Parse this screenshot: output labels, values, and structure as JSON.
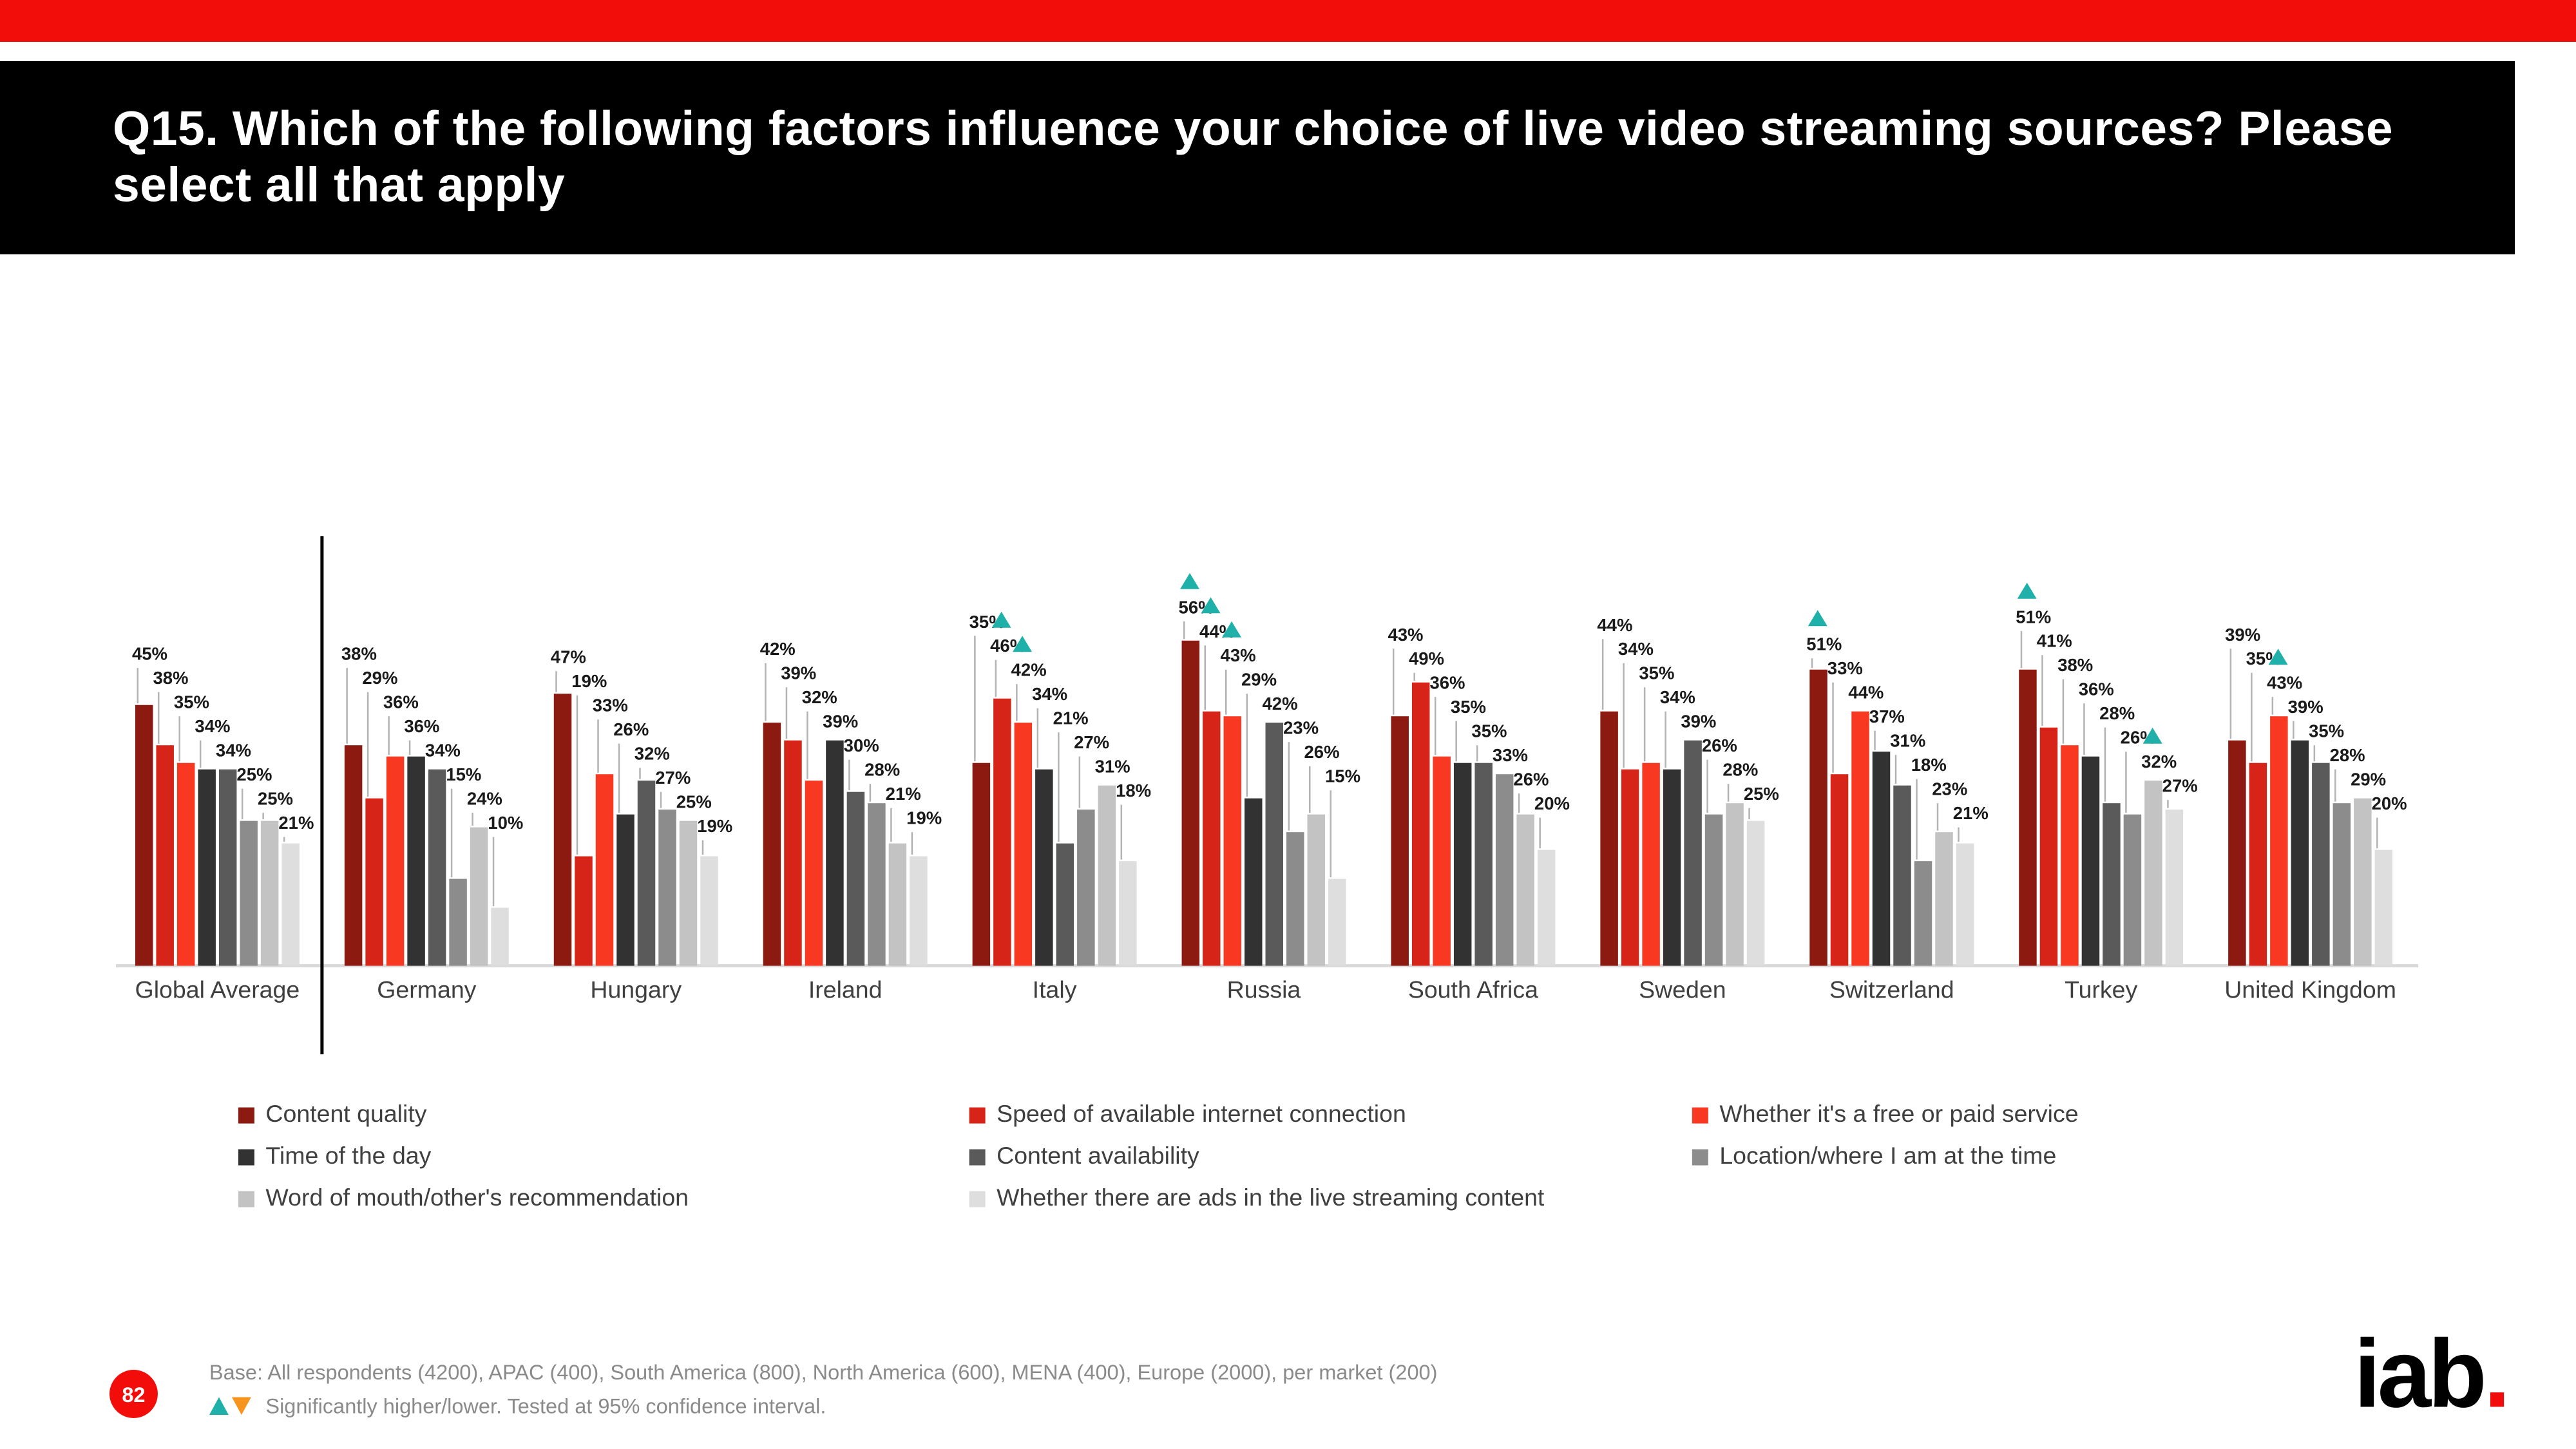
{
  "header": {
    "title": "Q15. Which of the following factors influence your choice of live video streaming sources? Please select all that apply"
  },
  "colors": {
    "accent_red": "#F20D0A",
    "header_bg": "#000000",
    "sig_higher": "#1FB1A9",
    "sig_lower": "#F7941D",
    "axis": "#D9D9D9",
    "leader": "#B3B3B3"
  },
  "chart_data": {
    "type": "bar",
    "title": "",
    "xlabel": "",
    "ylabel": "",
    "ylim": [
      0,
      60
    ],
    "grid": false,
    "legend_position": "bottom",
    "value_suffix": "%",
    "categories": [
      "Global Average",
      "Germany",
      "Hungary",
      "Ireland",
      "Italy",
      "Russia",
      "South Africa",
      "Sweden",
      "Switzerland",
      "Turkey",
      "United Kingdom"
    ],
    "series": [
      {
        "name": "Content quality",
        "color": "#8C1A10",
        "values": [
          45,
          38,
          47,
          42,
          35,
          56,
          43,
          44,
          51,
          51,
          39
        ]
      },
      {
        "name": "Speed of available internet connection",
        "color": "#D62518",
        "values": [
          38,
          29,
          19,
          39,
          46,
          44,
          49,
          34,
          33,
          41,
          35
        ]
      },
      {
        "name": "Whether it's a free or paid service",
        "color": "#F93822",
        "values": [
          35,
          36,
          33,
          32,
          42,
          43,
          36,
          35,
          44,
          38,
          43
        ]
      },
      {
        "name": "Time of the day",
        "color": "#323232",
        "values": [
          34,
          36,
          26,
          39,
          34,
          29,
          35,
          34,
          37,
          36,
          39
        ]
      },
      {
        "name": "Content availability",
        "color": "#5A5A5A",
        "values": [
          34,
          34,
          32,
          30,
          21,
          42,
          35,
          39,
          31,
          28,
          35
        ]
      },
      {
        "name": "Location/where I am at the time",
        "color": "#8C8C8C",
        "values": [
          25,
          15,
          27,
          28,
          27,
          23,
          33,
          26,
          18,
          26,
          28
        ]
      },
      {
        "name": "Word of mouth/other's recommendation",
        "color": "#C3C3C3",
        "values": [
          25,
          24,
          25,
          21,
          31,
          26,
          26,
          28,
          23,
          32,
          29
        ]
      },
      {
        "name": "Whether there are ads in the live streaming content",
        "color": "#DEDEDE",
        "values": [
          21,
          10,
          19,
          19,
          18,
          15,
          20,
          25,
          21,
          27,
          20
        ]
      }
    ],
    "sig_higher_markers": [
      {
        "category": "Italy",
        "series": "Speed of available internet connection"
      },
      {
        "category": "Italy",
        "series": "Whether it's a free or paid service"
      },
      {
        "category": "Russia",
        "series": "Content quality"
      },
      {
        "category": "Russia",
        "series": "Speed of available internet connection"
      },
      {
        "category": "Russia",
        "series": "Whether it's a free or paid service"
      },
      {
        "category": "Switzerland",
        "series": "Content quality"
      },
      {
        "category": "Turkey",
        "series": "Content quality"
      },
      {
        "category": "Turkey",
        "series": "Word of mouth/other's recommendation"
      },
      {
        "category": "United Kingdom",
        "series": "Whether it's a free or paid service"
      }
    ]
  },
  "legend": {
    "columns": [
      [
        0,
        3,
        6
      ],
      [
        1,
        4,
        7
      ],
      [
        2,
        5
      ]
    ]
  },
  "footer": {
    "page_number": "82",
    "base_text": "Base: All respondents (4200), APAC (400), South America (800), North America (600), MENA (400), Europe (2000), per market (200)",
    "sig_note": "Significantly higher/lower. Tested at 95% confidence interval.",
    "logo_text": "iab",
    "logo_dot": "."
  }
}
